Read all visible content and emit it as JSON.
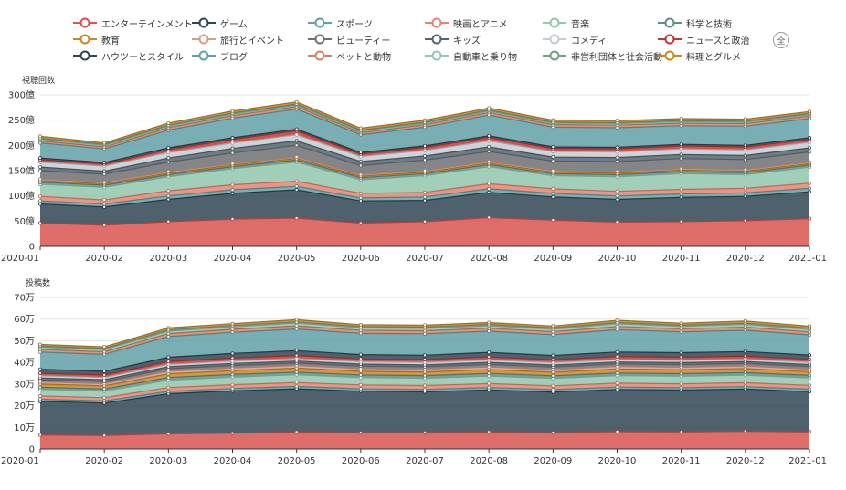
{
  "legend": {
    "select_all_label": "全",
    "items": [
      {
        "label": "エンターテインメント",
        "color": "#d9534f"
      },
      {
        "label": "ゲーム",
        "color": "#2f4554"
      },
      {
        "label": "スポーツ",
        "color": "#61a0a8"
      },
      {
        "label": "映画とアニメ",
        "color": "#e8836e"
      },
      {
        "label": "音楽",
        "color": "#91c7ae"
      },
      {
        "label": "科学と技術",
        "color": "#5e8f8a"
      },
      {
        "label": "教育",
        "color": "#ca8622"
      },
      {
        "label": "旅行とイベント",
        "color": "#d99a8c"
      },
      {
        "label": "ビューティー",
        "color": "#6e7074"
      },
      {
        "label": "キッズ",
        "color": "#546570"
      },
      {
        "label": "コメディ",
        "color": "#c4ccd3"
      },
      {
        "label": "ニュースと政治",
        "color": "#c23531"
      },
      {
        "label": "ハウツーとスタイル",
        "color": "#2f4554"
      },
      {
        "label": "ブログ",
        "color": "#61a0a8"
      },
      {
        "label": "ペットと動物",
        "color": "#d48265"
      },
      {
        "label": "自動車と乗り物",
        "color": "#91c7ae"
      },
      {
        "label": "非営利団体と社会活動",
        "color": "#749f83"
      },
      {
        "label": "料理とグルメ",
        "color": "#ca8622"
      }
    ]
  },
  "chart_data": [
    {
      "type": "area",
      "stacked": true,
      "ylabel": "視聴回数",
      "ylim": [
        0,
        300
      ],
      "ytick_values": [
        0,
        50,
        100,
        150,
        200,
        250,
        300
      ],
      "ytick_labels": [
        "0",
        "50億",
        "100億",
        "150億",
        "200億",
        "250億",
        "300億"
      ],
      "x": [
        "2020-01",
        "2020-02",
        "2020-03",
        "2020-04",
        "2020-05",
        "2020-06",
        "2020-07",
        "2020-08",
        "2020-09",
        "2020-10",
        "2020-11",
        "2020-12",
        "2021-01"
      ],
      "series": [
        {
          "name": "エンターテインメント",
          "values": [
            46,
            42,
            49,
            54,
            56,
            46,
            49,
            57,
            52,
            48,
            49,
            51,
            55
          ]
        },
        {
          "name": "ゲーム",
          "values": [
            38,
            36,
            44,
            51,
            56,
            44,
            42,
            50,
            46,
            45,
            48,
            48,
            53
          ]
        },
        {
          "name": "スポーツ",
          "values": [
            6,
            6,
            7,
            7,
            7,
            6,
            7,
            7,
            7,
            7,
            7,
            7,
            7
          ]
        },
        {
          "name": "映画とアニメ",
          "values": [
            9,
            8,
            10,
            10,
            10,
            9,
            9,
            10,
            9,
            9,
            9,
            9,
            10
          ]
        },
        {
          "name": "音楽",
          "values": [
            24,
            25,
            28,
            32,
            38,
            27,
            33,
            34,
            26,
            29,
            31,
            27,
            32
          ]
        },
        {
          "name": "科学と技術",
          "values": [
            4,
            4,
            4,
            4,
            4,
            4,
            4,
            4,
            4,
            4,
            4,
            4,
            4
          ]
        },
        {
          "name": "教育",
          "values": [
            3,
            3,
            3,
            3,
            3,
            3,
            3,
            3,
            3,
            3,
            3,
            3,
            3
          ]
        },
        {
          "name": "旅行とイベント",
          "values": [
            3,
            3,
            3,
            3,
            3,
            3,
            3,
            3,
            3,
            3,
            3,
            3,
            3
          ]
        },
        {
          "name": "ビューティー",
          "values": [
            17,
            16,
            19,
            21,
            23,
            18,
            21,
            20,
            19,
            20,
            20,
            20,
            20
          ]
        },
        {
          "name": "キッズ",
          "values": [
            7,
            6,
            8,
            9,
            9,
            8,
            8,
            9,
            8,
            8,
            8,
            8,
            8
          ]
        },
        {
          "name": "コメディ",
          "values": [
            10,
            10,
            11,
            11,
            12,
            10,
            11,
            12,
            11,
            11,
            11,
            11,
            11
          ]
        },
        {
          "name": "ニュースと政治",
          "values": [
            5,
            4,
            6,
            7,
            8,
            5,
            6,
            7,
            6,
            6,
            6,
            6,
            6
          ]
        },
        {
          "name": "ハウツーとスタイル",
          "values": [
            3,
            3,
            3,
            3,
            3,
            3,
            3,
            3,
            3,
            3,
            3,
            3,
            3
          ]
        },
        {
          "name": "ブログ",
          "values": [
            30,
            27,
            35,
            39,
            40,
            35,
            37,
            41,
            39,
            39,
            37,
            38,
            38
          ]
        },
        {
          "name": "ペットと動物",
          "values": [
            4,
            4,
            5,
            5,
            5,
            4,
            5,
            5,
            5,
            5,
            5,
            5,
            5
          ]
        },
        {
          "name": "自動車と乗り物",
          "values": [
            3,
            3,
            3,
            3,
            3,
            3,
            3,
            3,
            3,
            3,
            3,
            3,
            3
          ]
        },
        {
          "name": "非営利団体と社会活動",
          "values": [
            2,
            2,
            2,
            2,
            2,
            2,
            2,
            2,
            2,
            2,
            2,
            2,
            2
          ]
        },
        {
          "name": "料理とグルメ",
          "values": [
            4,
            3,
            4,
            4,
            4,
            4,
            4,
            4,
            4,
            4,
            4,
            4,
            4
          ]
        }
      ]
    },
    {
      "type": "area",
      "stacked": true,
      "ylabel": "投稿数",
      "ylim": [
        0,
        70
      ],
      "ytick_values": [
        0,
        10,
        20,
        30,
        40,
        50,
        60,
        70
      ],
      "ytick_labels": [
        "0",
        "10万",
        "20万",
        "30万",
        "40万",
        "50万",
        "60万",
        "70万"
      ],
      "x": [
        "2020-01",
        "2020-02",
        "2020-03",
        "2020-04",
        "2020-05",
        "2020-06",
        "2020-07",
        "2020-08",
        "2020-09",
        "2020-10",
        "2020-11",
        "2020-12",
        "2021-01"
      ],
      "series": [
        {
          "name": "エンターテインメント",
          "values": [
            6.5,
            6.2,
            7.0,
            7.3,
            7.8,
            7.5,
            7.6,
            7.8,
            7.5,
            8.0,
            7.9,
            8.2,
            7.9
          ]
        },
        {
          "name": "ゲーム",
          "values": [
            15.5,
            15.0,
            18.5,
            19.5,
            20.0,
            19.2,
            18.8,
            19.5,
            18.8,
            19.5,
            19.3,
            19.5,
            18.6
          ]
        },
        {
          "name": "スポーツ",
          "values": [
            1.0,
            1.0,
            1.1,
            1.1,
            1.1,
            1.1,
            1.1,
            1.1,
            1.1,
            1.1,
            1.1,
            1.1,
            1.1
          ]
        },
        {
          "name": "映画とアニメ",
          "values": [
            1.5,
            1.5,
            1.8,
            1.8,
            1.8,
            1.8,
            1.8,
            1.8,
            1.8,
            1.8,
            1.8,
            1.8,
            1.8
          ]
        },
        {
          "name": "音楽",
          "values": [
            3.0,
            3.0,
            3.4,
            3.5,
            3.6,
            3.4,
            3.4,
            3.5,
            3.4,
            3.5,
            3.5,
            3.5,
            3.4
          ]
        },
        {
          "name": "科学と技術",
          "values": [
            1.0,
            1.0,
            1.2,
            1.2,
            1.2,
            1.2,
            1.2,
            1.2,
            1.2,
            1.2,
            1.2,
            1.2,
            1.2
          ]
        },
        {
          "name": "教育",
          "values": [
            1.5,
            1.5,
            1.7,
            1.8,
            1.8,
            1.7,
            1.7,
            1.8,
            1.7,
            1.8,
            1.8,
            1.8,
            1.7
          ]
        },
        {
          "name": "旅行とイベント",
          "values": [
            1.0,
            1.0,
            1.2,
            1.2,
            1.2,
            1.2,
            1.2,
            1.2,
            1.2,
            1.2,
            1.2,
            1.2,
            1.2
          ]
        },
        {
          "name": "ビューティー",
          "values": [
            1.0,
            1.0,
            1.2,
            1.2,
            1.2,
            1.2,
            1.2,
            1.2,
            1.2,
            1.2,
            1.2,
            1.2,
            1.2
          ]
        },
        {
          "name": "キッズ",
          "values": [
            0.8,
            0.8,
            0.9,
            0.9,
            0.9,
            0.9,
            0.9,
            0.9,
            0.9,
            0.9,
            0.9,
            0.9,
            0.9
          ]
        },
        {
          "name": "コメディ",
          "values": [
            1.0,
            1.0,
            1.1,
            1.1,
            1.2,
            1.1,
            1.1,
            1.1,
            1.1,
            1.1,
            1.1,
            1.1,
            1.1
          ]
        },
        {
          "name": "ニュースと政治",
          "values": [
            1.2,
            1.2,
            1.3,
            1.4,
            1.4,
            1.3,
            1.3,
            1.4,
            1.3,
            1.4,
            1.4,
            1.4,
            1.3
          ]
        },
        {
          "name": "ハウツーとスタイル",
          "values": [
            1.8,
            1.7,
            2.0,
            2.1,
            2.2,
            2.0,
            2.0,
            2.1,
            2.0,
            2.1,
            2.1,
            2.1,
            2.0
          ]
        },
        {
          "name": "ブログ",
          "values": [
            8.0,
            7.8,
            9.5,
            9.8,
            10.0,
            9.8,
            9.9,
            9.8,
            9.6,
            10.3,
            9.6,
            9.8,
            9.3
          ]
        },
        {
          "name": "ペットと動物",
          "values": [
            1.2,
            1.2,
            1.4,
            1.4,
            1.5,
            1.4,
            1.4,
            1.4,
            1.4,
            1.5,
            1.4,
            1.5,
            1.4
          ]
        },
        {
          "name": "自動車と乗り物",
          "values": [
            1.0,
            1.0,
            1.1,
            1.1,
            1.2,
            1.1,
            1.1,
            1.1,
            1.1,
            1.2,
            1.1,
            1.2,
            1.1
          ]
        },
        {
          "name": "非営利団体と社会活動",
          "values": [
            0.5,
            0.5,
            0.6,
            0.6,
            0.6,
            0.6,
            0.6,
            0.6,
            0.6,
            0.6,
            0.6,
            0.6,
            0.6
          ]
        },
        {
          "name": "料理とグルメ",
          "values": [
            0.8,
            0.8,
            0.9,
            0.9,
            1.0,
            0.9,
            0.9,
            0.9,
            0.9,
            1.0,
            0.9,
            1.0,
            0.9
          ]
        }
      ]
    }
  ]
}
